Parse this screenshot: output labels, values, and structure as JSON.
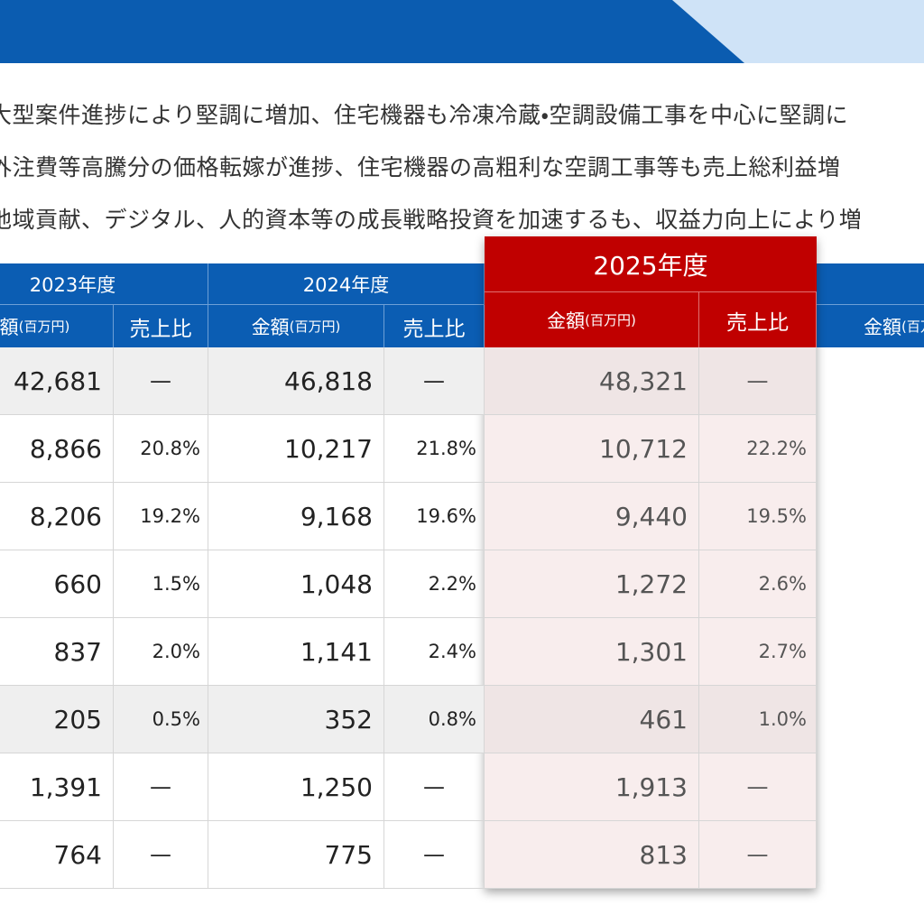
{
  "intro_lines": [
    "大型案件進捗により堅調に増加、住宅機器も冷凍冷蔵・空調設備工事を中心に堅調に",
    "外注費等高騰分の価格転嫁が進捗、住宅機器の高粗利な空調工事等も売上総利益増",
    "地域貢献、デジタル、人的資本等の成長戦略投資を加速するも、収益力向上により増"
  ],
  "table": {
    "year_headers": [
      "2023年度",
      "2024年度",
      "2025年度"
    ],
    "sub_headers": {
      "amount": "金額",
      "unit": "(百万円)",
      "ratio": "売上比"
    },
    "rows": [
      [
        "42,681",
        "—",
        "46,818",
        "—",
        "48,321",
        "—"
      ],
      [
        "8,866",
        "20.8%",
        "10,217",
        "21.8%",
        "10,712",
        "22.2%"
      ],
      [
        "8,206",
        "19.2%",
        "9,168",
        "19.6%",
        "9,440",
        "19.5%"
      ],
      [
        "660",
        "1.5%",
        "1,048",
        "2.2%",
        "1,272",
        "2.6%"
      ],
      [
        "837",
        "2.0%",
        "1,141",
        "2.4%",
        "1,301",
        "2.7%"
      ],
      [
        "205",
        "0.5%",
        "352",
        "0.8%",
        "461",
        "1.0%"
      ],
      [
        "1,391",
        "—",
        "1,250",
        "—",
        "1,913",
        "—"
      ],
      [
        "764",
        "—",
        "775",
        "—",
        "813",
        "—"
      ]
    ]
  }
}
